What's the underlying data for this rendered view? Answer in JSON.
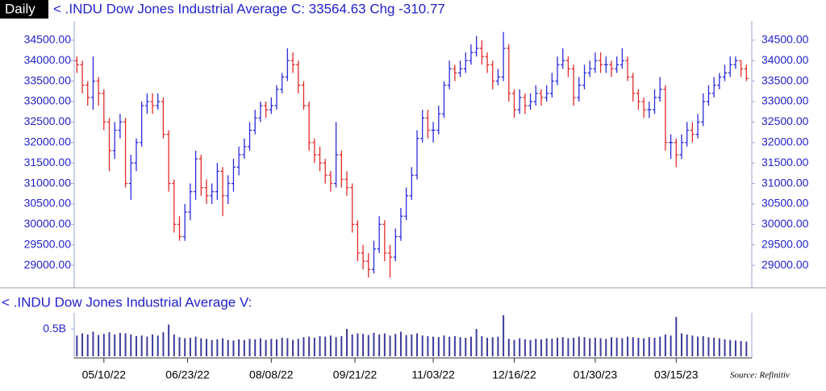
{
  "period": "Daily",
  "source": "Source: Refinitiv",
  "chart_data": [
    {
      "type": "ohlc",
      "title": "< .INDU  Dow Jones Industrial Average  C: 33564.63  Chg -310.77",
      "up_color": "#2b2bd9",
      "down_color": "#e02a2a",
      "xlim": [
        -1,
        250
      ],
      "ylim": [
        28490,
        34930
      ],
      "yticks": [
        {
          "value": 29000,
          "label": "29000.00"
        },
        {
          "value": 29500,
          "label": "29500.00"
        },
        {
          "value": 30000,
          "label": "30000.00"
        },
        {
          "value": 30500,
          "label": "30500.00"
        },
        {
          "value": 31000,
          "label": "31000.00"
        },
        {
          "value": 31500,
          "label": "31500.00"
        },
        {
          "value": 32000,
          "label": "32000.00"
        },
        {
          "value": 32500,
          "label": "32500.00"
        },
        {
          "value": 33000,
          "label": "33000.00"
        },
        {
          "value": 33500,
          "label": "33500.00"
        },
        {
          "value": 34000,
          "label": "34000.00"
        },
        {
          "value": 34500,
          "label": "34500.00"
        }
      ],
      "x": [
        0,
        2,
        4,
        6,
        8,
        10,
        12,
        14,
        16,
        18,
        20,
        22,
        24,
        26,
        28,
        30,
        32,
        34,
        36,
        38,
        40,
        42,
        44,
        46,
        48,
        50,
        52,
        54,
        56,
        58,
        60,
        62,
        64,
        66,
        68,
        70,
        72,
        74,
        76,
        78,
        80,
        82,
        84,
        86,
        88,
        90,
        92,
        94,
        96,
        98,
        100,
        102,
        104,
        106,
        108,
        110,
        112,
        114,
        116,
        118,
        120,
        122,
        124,
        126,
        128,
        130,
        132,
        134,
        136,
        138,
        140,
        142,
        144,
        146,
        148,
        150,
        152,
        154,
        156,
        158,
        160,
        162,
        164,
        166,
        168,
        170,
        172,
        174,
        176,
        178,
        180,
        182,
        184,
        186,
        188,
        190,
        192,
        194,
        196,
        198,
        200,
        202,
        204,
        206,
        208,
        210,
        212,
        214,
        216,
        218,
        220,
        222,
        224,
        226,
        228,
        230,
        232,
        234,
        236,
        238,
        240,
        242,
        244,
        246,
        248
      ],
      "open": [
        34000,
        33900,
        33400,
        33100,
        33500,
        33200,
        32500,
        31800,
        32300,
        32500,
        31000,
        31500,
        32000,
        32900,
        33000,
        32900,
        33000,
        32200,
        31000,
        30000,
        29700,
        30300,
        30800,
        31600,
        30900,
        30700,
        30800,
        31300,
        30700,
        31000,
        31400,
        31700,
        31900,
        32300,
        32600,
        32900,
        32800,
        32900,
        33300,
        33600,
        34000,
        33900,
        33400,
        32900,
        32000,
        31700,
        31500,
        31200,
        31000,
        31700,
        31100,
        30900,
        30000,
        29300,
        29100,
        28900,
        29400,
        30000,
        29300,
        29200,
        29700,
        30200,
        30700,
        31200,
        32100,
        32600,
        32300,
        32300,
        32700,
        33400,
        33800,
        33700,
        33800,
        34000,
        34200,
        34300,
        34100,
        33900,
        33500,
        33600,
        34300,
        33200,
        32800,
        33100,
        32900,
        33000,
        33200,
        33100,
        33200,
        33500,
        33900,
        34000,
        33800,
        33100,
        33400,
        33700,
        33800,
        34000,
        33900,
        33900,
        33800,
        33900,
        34000,
        33600,
        33200,
        33000,
        32800,
        32800,
        33100,
        33300,
        32000,
        32000,
        31700,
        32000,
        32300,
        32200,
        32500,
        33000,
        33200,
        33400,
        33600,
        33700,
        33900,
        34000,
        33800
      ],
      "high": [
        34100,
        34000,
        33500,
        34100,
        33600,
        33300,
        32600,
        32500,
        32700,
        32600,
        31700,
        32100,
        33000,
        33200,
        33200,
        33200,
        33100,
        32300,
        31100,
        30200,
        30500,
        31000,
        31800,
        31700,
        31100,
        31000,
        31500,
        31400,
        31200,
        31600,
        31900,
        32100,
        32500,
        32800,
        33000,
        33000,
        33100,
        33400,
        33700,
        34300,
        34200,
        34000,
        33500,
        33000,
        32100,
        31900,
        31600,
        31300,
        32500,
        31800,
        31300,
        31000,
        30100,
        29500,
        29300,
        29600,
        30200,
        30100,
        29500,
        29900,
        30400,
        30900,
        31400,
        32300,
        32800,
        32800,
        32500,
        32900,
        33500,
        34000,
        33900,
        34000,
        34200,
        34400,
        34600,
        34500,
        34200,
        34000,
        33800,
        34700,
        34400,
        33300,
        33300,
        33200,
        33200,
        33400,
        33300,
        33400,
        33700,
        34100,
        34300,
        34100,
        33900,
        33600,
        33900,
        34000,
        34200,
        34200,
        34100,
        34000,
        34100,
        34300,
        34100,
        33700,
        33300,
        33100,
        33000,
        33300,
        33600,
        33400,
        32200,
        32100,
        32200,
        32500,
        32500,
        32700,
        33200,
        33400,
        33600,
        33700,
        33900,
        34100,
        34100,
        34000,
        33900
      ],
      "low": [
        33700,
        33200,
        32900,
        32800,
        32900,
        32300,
        31300,
        31600,
        32100,
        30900,
        30600,
        31300,
        31900,
        32700,
        32700,
        32800,
        32100,
        30800,
        29800,
        29600,
        29600,
        30100,
        30600,
        30700,
        30500,
        30500,
        30600,
        30200,
        30500,
        30800,
        31200,
        31600,
        31800,
        32200,
        32500,
        32600,
        32700,
        32800,
        33200,
        33500,
        33700,
        33200,
        32800,
        31800,
        31500,
        31300,
        31000,
        30800,
        30900,
        30900,
        30700,
        29800,
        29100,
        28900,
        28700,
        28800,
        29300,
        29100,
        28700,
        29100,
        29600,
        30100,
        30600,
        31100,
        32000,
        32100,
        32000,
        32200,
        32600,
        33300,
        33500,
        33600,
        33700,
        33900,
        34100,
        33900,
        33700,
        33300,
        33400,
        33500,
        33000,
        32600,
        32700,
        32700,
        32800,
        32900,
        32900,
        33000,
        33100,
        33400,
        33800,
        33600,
        32900,
        33000,
        33300,
        33600,
        33700,
        33700,
        33700,
        33600,
        33700,
        33800,
        33500,
        33000,
        32800,
        32600,
        32600,
        32700,
        33000,
        31800,
        31600,
        31400,
        31600,
        31900,
        32000,
        32100,
        32400,
        32900,
        33100,
        33300,
        33500,
        33600,
        33800,
        33600,
        33500
      ],
      "close": [
        33900,
        33400,
        33100,
        33500,
        33200,
        32500,
        31800,
        32300,
        32500,
        31000,
        31500,
        32000,
        32900,
        33000,
        32900,
        33000,
        32200,
        31000,
        30000,
        29700,
        30300,
        30800,
        31600,
        30900,
        30700,
        30800,
        31300,
        30700,
        31000,
        31400,
        31700,
        31900,
        32300,
        32600,
        32900,
        32800,
        32900,
        33300,
        33600,
        34000,
        33900,
        33400,
        32900,
        32000,
        31700,
        31500,
        31200,
        31000,
        31700,
        31100,
        30900,
        30000,
        29300,
        29100,
        28900,
        29400,
        30000,
        29300,
        29200,
        29700,
        30200,
        30700,
        31200,
        32100,
        32600,
        32300,
        32300,
        32700,
        33400,
        33800,
        33700,
        33800,
        34000,
        34200,
        34300,
        34100,
        33900,
        33500,
        33600,
        34300,
        33200,
        32800,
        33100,
        32900,
        33000,
        33200,
        33100,
        33200,
        33500,
        33900,
        34000,
        33800,
        33100,
        33400,
        33700,
        33800,
        34000,
        33900,
        33900,
        33800,
        33900,
        34000,
        33600,
        33200,
        33000,
        32800,
        32800,
        33100,
        33300,
        32000,
        32000,
        31700,
        32000,
        32300,
        32200,
        32500,
        33000,
        33200,
        33400,
        33600,
        33700,
        33900,
        34000,
        33800,
        33564.63
      ]
    },
    {
      "type": "bar",
      "title": "< .INDU  Dow Jones Industrial Average  V:",
      "color": "#3c3c9c",
      "xlim": [
        -1,
        250
      ],
      "ylim": [
        0,
        0.84
      ],
      "yticks": [
        {
          "value": 0.5,
          "label": "0.5B"
        }
      ],
      "xticks": [
        {
          "value": 10,
          "label": "05/10/22"
        },
        {
          "value": 41,
          "label": "06/23/22"
        },
        {
          "value": 72,
          "label": "08/08/22"
        },
        {
          "value": 103,
          "label": "09/21/22"
        },
        {
          "value": 132,
          "label": "11/03/22"
        },
        {
          "value": 162,
          "label": "12/16/22"
        },
        {
          "value": 192,
          "label": "01/30/23"
        },
        {
          "value": 222,
          "label": "03/15/23"
        }
      ],
      "x": [
        0,
        2,
        4,
        6,
        8,
        10,
        12,
        14,
        16,
        18,
        20,
        22,
        24,
        26,
        28,
        30,
        32,
        34,
        36,
        38,
        40,
        42,
        44,
        46,
        48,
        50,
        52,
        54,
        56,
        58,
        60,
        62,
        64,
        66,
        68,
        70,
        72,
        74,
        76,
        78,
        80,
        82,
        84,
        86,
        88,
        90,
        92,
        94,
        96,
        98,
        100,
        102,
        104,
        106,
        108,
        110,
        112,
        114,
        116,
        118,
        120,
        122,
        124,
        126,
        128,
        130,
        132,
        134,
        136,
        138,
        140,
        142,
        144,
        146,
        148,
        150,
        152,
        154,
        156,
        158,
        160,
        162,
        164,
        166,
        168,
        170,
        172,
        174,
        176,
        178,
        180,
        182,
        184,
        186,
        188,
        190,
        192,
        194,
        196,
        198,
        200,
        202,
        204,
        206,
        208,
        210,
        212,
        214,
        216,
        218,
        220,
        222,
        224,
        226,
        228,
        230,
        232,
        234,
        236,
        238,
        240,
        242,
        244,
        246,
        248
      ],
      "values": [
        0.38,
        0.42,
        0.4,
        0.45,
        0.39,
        0.41,
        0.44,
        0.4,
        0.43,
        0.42,
        0.4,
        0.37,
        0.38,
        0.36,
        0.4,
        0.38,
        0.44,
        0.58,
        0.4,
        0.35,
        0.33,
        0.34,
        0.36,
        0.33,
        0.32,
        0.3,
        0.31,
        0.33,
        0.3,
        0.29,
        0.31,
        0.3,
        0.32,
        0.31,
        0.33,
        0.3,
        0.32,
        0.31,
        0.34,
        0.33,
        0.3,
        0.32,
        0.35,
        0.36,
        0.34,
        0.37,
        0.36,
        0.38,
        0.35,
        0.37,
        0.5,
        0.4,
        0.42,
        0.41,
        0.39,
        0.43,
        0.4,
        0.42,
        0.38,
        0.41,
        0.45,
        0.39,
        0.4,
        0.42,
        0.38,
        0.37,
        0.36,
        0.35,
        0.38,
        0.36,
        0.37,
        0.35,
        0.34,
        0.36,
        0.5,
        0.37,
        0.34,
        0.35,
        0.36,
        0.75,
        0.32,
        0.3,
        0.33,
        0.31,
        0.3,
        0.32,
        0.31,
        0.33,
        0.32,
        0.34,
        0.35,
        0.33,
        0.34,
        0.36,
        0.35,
        0.33,
        0.34,
        0.33,
        0.32,
        0.35,
        0.34,
        0.33,
        0.36,
        0.35,
        0.34,
        0.33,
        0.35,
        0.34,
        0.36,
        0.4,
        0.38,
        0.72,
        0.42,
        0.4,
        0.38,
        0.36,
        0.37,
        0.35,
        0.34,
        0.33,
        0.31,
        0.3,
        0.29,
        0.28,
        0.27
      ]
    }
  ]
}
